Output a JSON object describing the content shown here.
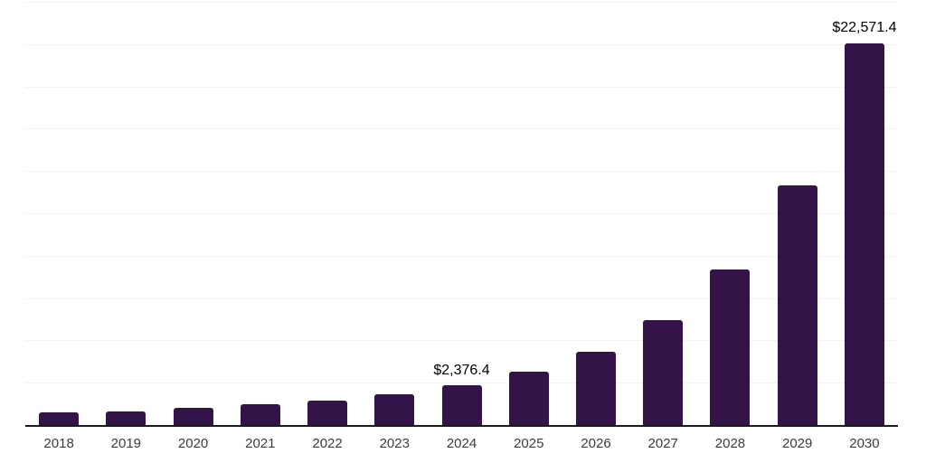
{
  "chart_data": {
    "type": "bar",
    "title": "",
    "xlabel": "",
    "ylabel": "",
    "categories": [
      "2018",
      "2019",
      "2020",
      "2021",
      "2022",
      "2023",
      "2024",
      "2025",
      "2026",
      "2027",
      "2028",
      "2029",
      "2030"
    ],
    "values": [
      730,
      820,
      1010,
      1210,
      1420,
      1815,
      2376.4,
      3165,
      4305,
      6205,
      9200,
      14165,
      22571.4
    ],
    "data_labels": [
      "",
      "",
      "",
      "",
      "",
      "",
      "$2,376.4",
      "",
      "",
      "",
      "",
      "",
      "$22,571.4"
    ],
    "labeled_categories": [
      "2024",
      "2030"
    ],
    "ylim": [
      0,
      25000
    ],
    "gridline_step": 2500,
    "grid": "horizontal-only",
    "legend": "none",
    "bar_color": "#341349"
  },
  "colors": {
    "background": "#ffffff",
    "bar": "#341349",
    "gridline": "#f4f4f4",
    "axis_line": "#1a1a1a",
    "tick_label": "#3c3c3c",
    "data_label": "#000000"
  }
}
